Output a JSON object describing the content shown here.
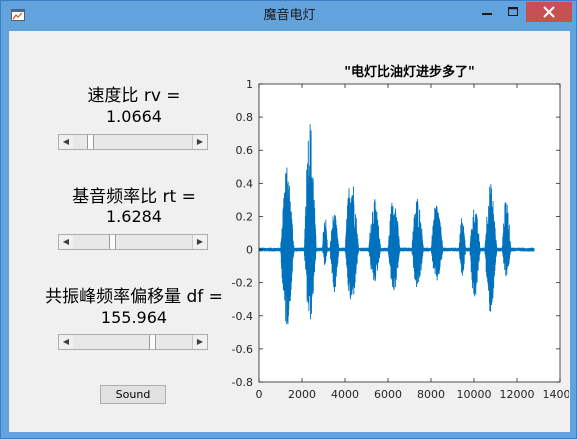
{
  "window": {
    "title": "魔音电灯",
    "icon": "matlab-figure-icon",
    "controls": [
      "minimize-icon",
      "maximize-icon",
      "close-icon"
    ],
    "close_color": "#c75050"
  },
  "params": [
    {
      "label": "速度比 rv =",
      "value": "1.0664",
      "slider_fraction": 0.12
    },
    {
      "label": "基音频率比 rt =",
      "value": "1.6284",
      "slider_fraction": 0.32
    },
    {
      "label": "共振峰频率偏移量 df =",
      "value": "155.964",
      "slider_fraction": 0.67
    }
  ],
  "sound_button": {
    "label": "Sound"
  },
  "chart_data": {
    "type": "line",
    "title": "\"电灯比油灯进步多了\"",
    "xlim": [
      0,
      14000
    ],
    "ylim": [
      -0.8,
      1
    ],
    "x_ticks": [
      "0",
      "2000",
      "4000",
      "6000",
      "8000",
      "10000",
      "12000",
      "14000"
    ],
    "y_ticks": [
      "1",
      "0.8",
      "0.6",
      "0.4",
      "0.2",
      "0",
      "-0.2",
      "-0.4",
      "-0.6",
      "-0.8"
    ],
    "series": [
      {
        "color": "#0072bd",
        "sample_count": 12800,
        "bursts": [
          {
            "start": 1000,
            "end": 1900,
            "peak_pos": 0.62,
            "peak_neg": -0.58
          },
          {
            "start": 2100,
            "end": 2900,
            "peak_pos": 1.0,
            "peak_neg": -0.55
          },
          {
            "start": 2950,
            "end": 3300,
            "peak_pos": 0.28,
            "peak_neg": -0.12
          },
          {
            "start": 3300,
            "end": 3900,
            "peak_pos": 0.28,
            "peak_neg": -0.32
          },
          {
            "start": 4000,
            "end": 4900,
            "peak_pos": 0.58,
            "peak_neg": -0.42
          },
          {
            "start": 5100,
            "end": 5900,
            "peak_pos": 0.38,
            "peak_neg": -0.25
          },
          {
            "start": 6000,
            "end": 6800,
            "peak_pos": 0.42,
            "peak_neg": -0.32
          },
          {
            "start": 7100,
            "end": 7900,
            "peak_pos": 0.4,
            "peak_neg": -0.3
          },
          {
            "start": 8000,
            "end": 8800,
            "peak_pos": 0.36,
            "peak_neg": -0.25
          },
          {
            "start": 9300,
            "end": 9750,
            "peak_pos": 0.25,
            "peak_neg": -0.2
          },
          {
            "start": 9800,
            "end": 10500,
            "peak_pos": 0.33,
            "peak_neg": -0.38
          },
          {
            "start": 10500,
            "end": 11300,
            "peak_pos": 0.5,
            "peak_neg": -0.48
          },
          {
            "start": 11300,
            "end": 11900,
            "peak_pos": 0.38,
            "peak_neg": -0.2
          }
        ]
      }
    ]
  }
}
